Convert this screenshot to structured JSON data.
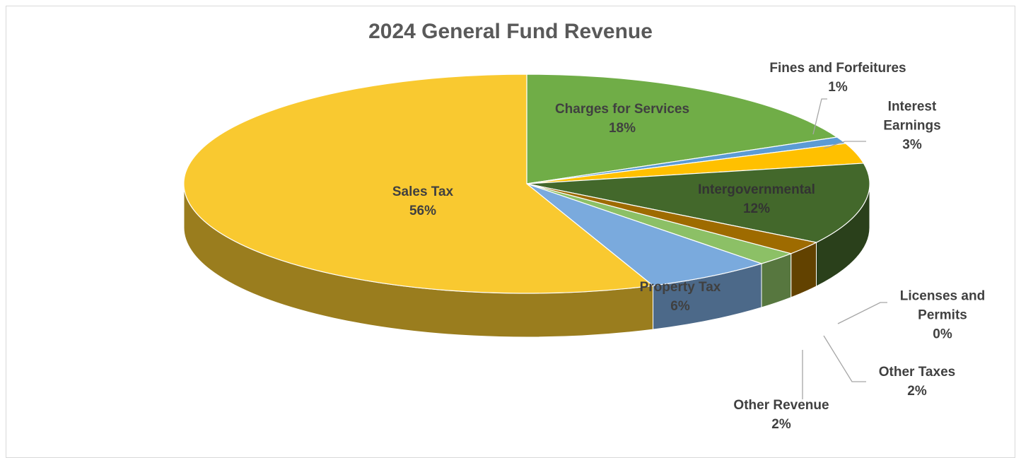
{
  "chart_data": {
    "type": "pie",
    "title": "2024 General Fund Revenue",
    "categories": [
      "Charges for Services",
      "Fines and Forfeitures",
      "Interest Earnings",
      "Intergovernmental",
      "Licenses and Permits",
      "Other Taxes",
      "Other Revenue",
      "Property Tax",
      "Sales Tax"
    ],
    "values": [
      18,
      1,
      3,
      12,
      0,
      2,
      2,
      6,
      56
    ],
    "value_labels": [
      "18%",
      "1%",
      "3%",
      "12%",
      "0%",
      "2%",
      "2%",
      "6%",
      "56%"
    ],
    "colors": [
      "#70ad47",
      "#5b9bd5",
      "#ffc000",
      "#43682b",
      "#264478",
      "#9e6b00",
      "#8cc066",
      "#7aaadd",
      "#f9c930"
    ]
  }
}
